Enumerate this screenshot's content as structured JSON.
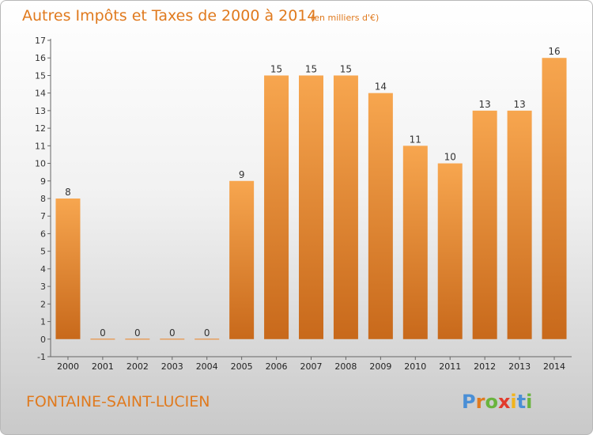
{
  "chart_data": {
    "type": "bar",
    "title": "Autres Impôts et Taxes de 2000 à 2014",
    "subtitle": "(en milliers d'€)",
    "categories": [
      "2000",
      "2001",
      "2002",
      "2003",
      "2004",
      "2005",
      "2006",
      "2007",
      "2008",
      "2009",
      "2010",
      "2011",
      "2012",
      "2013",
      "2014"
    ],
    "values": [
      8,
      0,
      0,
      0,
      0,
      9,
      15,
      15,
      15,
      14,
      11,
      10,
      13,
      13,
      16
    ],
    "ylim": [
      -1,
      17
    ],
    "yticks": [
      -1,
      0,
      1,
      2,
      3,
      4,
      5,
      6,
      7,
      8,
      9,
      10,
      11,
      12,
      13,
      14,
      15,
      16,
      17
    ],
    "xlabel": "",
    "ylabel": "",
    "grid": false,
    "bar_color_top": "#f7a64f",
    "bar_color_bottom": "#c8691b"
  },
  "footer": {
    "commune": "FONTAINE-SAINT-LUCIEN",
    "logo_letters": [
      {
        "ch": "P",
        "color": "#4a8fd6"
      },
      {
        "ch": "r",
        "color": "#e07a1e"
      },
      {
        "ch": "o",
        "color": "#6ab43e"
      },
      {
        "ch": "x",
        "color": "#e23a2c"
      },
      {
        "ch": "i",
        "color": "#f2b41c"
      },
      {
        "ch": "t",
        "color": "#4a8fd6"
      },
      {
        "ch": "i",
        "color": "#6ab43e"
      }
    ]
  }
}
